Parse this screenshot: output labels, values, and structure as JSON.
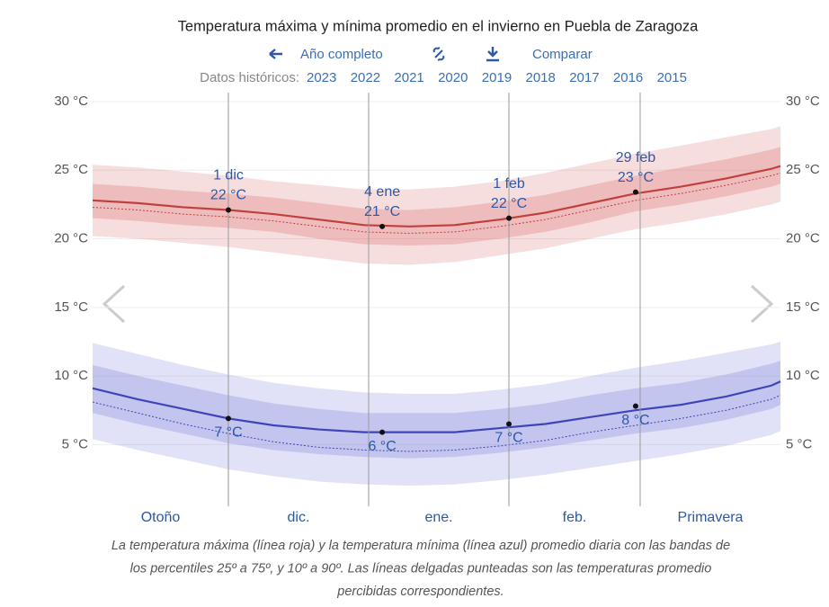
{
  "chart_data": {
    "type": "band_line",
    "title": "Temperatura máxima y mínima promedio en el invierno en Puebla de Zaragoza",
    "links": [
      "Año completo",
      "Comparar"
    ],
    "history_label": "Datos históricos:",
    "years": [
      "2023",
      "2022",
      "2021",
      "2020",
      "2019",
      "2018",
      "2017",
      "2016",
      "2015"
    ],
    "caption": [
      "La temperatura máxima (línea roja) y la temperatura mínima (línea azul) promedio diaria con las bandas de",
      "los percentiles 25º a 75º, y 10º a 90º. Las líneas delgadas punteadas son las temperaturas promedio",
      "percibidas correspondientes."
    ],
    "months": [
      "Otoño",
      "dic.",
      "ene.",
      "feb.",
      "Primavera"
    ],
    "x": [
      0,
      10,
      20,
      30,
      40,
      50,
      60,
      70,
      80,
      90,
      100,
      110,
      120,
      130,
      140,
      150,
      152
    ],
    "xlim": [
      0,
      152
    ],
    "xticks": [
      30,
      61,
      92,
      121
    ],
    "ylim": [
      0.5,
      30
    ],
    "yticks": [
      {
        "value": 5,
        "label": "5 °C"
      },
      {
        "value": 10,
        "label": "10 °C"
      },
      {
        "value": 15,
        "label": "15 °C"
      },
      {
        "value": 20,
        "label": "20 °C"
      },
      {
        "value": 25,
        "label": "25 °C"
      },
      {
        "value": 30,
        "label": "30 °C"
      }
    ],
    "grid": true,
    "series": [
      {
        "color": "#c0403c",
        "band_color": "#d9585a",
        "values": [
          22.8,
          22.6,
          22.3,
          22.1,
          21.8,
          21.4,
          21.0,
          20.9,
          21.0,
          21.4,
          21.9,
          22.6,
          23.3,
          23.8,
          24.4,
          25.1,
          25.3
        ],
        "perceived": [
          22.3,
          22.1,
          21.8,
          21.6,
          21.3,
          20.9,
          20.5,
          20.4,
          20.5,
          20.9,
          21.4,
          22.1,
          22.8,
          23.3,
          23.9,
          24.6,
          24.8
        ],
        "p10": [
          20.2,
          20.0,
          19.7,
          19.4,
          19.0,
          18.6,
          18.2,
          18.1,
          18.3,
          18.8,
          19.3,
          20.0,
          20.7,
          21.2,
          21.8,
          22.5,
          22.7
        ],
        "p25": [
          21.5,
          21.3,
          21.0,
          20.8,
          20.5,
          20.0,
          19.6,
          19.5,
          19.6,
          20.0,
          20.5,
          21.2,
          22.0,
          22.5,
          23.1,
          23.8,
          24.0
        ],
        "p75": [
          24.0,
          23.8,
          23.5,
          23.3,
          23.0,
          22.6,
          22.2,
          22.1,
          22.3,
          22.7,
          23.2,
          23.9,
          24.6,
          25.2,
          25.8,
          26.5,
          26.7
        ],
        "p90": [
          25.4,
          25.2,
          24.9,
          24.6,
          24.2,
          23.9,
          23.6,
          23.6,
          23.8,
          24.2,
          24.8,
          25.5,
          26.2,
          26.8,
          27.4,
          28.0,
          28.2
        ]
      },
      {
        "color": "#3f45b8",
        "band_color": "#6a6fd6",
        "values": [
          9.1,
          8.3,
          7.6,
          6.9,
          6.4,
          6.1,
          5.9,
          5.9,
          5.9,
          6.2,
          6.5,
          7.0,
          7.5,
          7.9,
          8.5,
          9.3,
          9.6
        ],
        "perceived": [
          8.1,
          7.3,
          6.5,
          5.8,
          5.2,
          4.8,
          4.6,
          4.5,
          4.6,
          4.9,
          5.3,
          5.9,
          6.4,
          6.9,
          7.5,
          8.3,
          8.6
        ],
        "p10": [
          5.4,
          4.6,
          3.9,
          3.2,
          2.7,
          2.3,
          2.1,
          2.0,
          2.1,
          2.4,
          2.8,
          3.3,
          3.8,
          4.3,
          4.9,
          5.7,
          6.0
        ],
        "p25": [
          7.3,
          6.5,
          5.8,
          5.1,
          4.6,
          4.3,
          4.1,
          4.0,
          4.1,
          4.4,
          4.8,
          5.3,
          5.8,
          6.2,
          6.8,
          7.6,
          7.9
        ],
        "p75": [
          10.8,
          10.0,
          9.3,
          8.6,
          8.0,
          7.6,
          7.3,
          7.3,
          7.3,
          7.6,
          8.0,
          8.6,
          9.1,
          9.5,
          10.1,
          10.9,
          11.1
        ],
        "p90": [
          12.4,
          11.6,
          10.8,
          10.1,
          9.5,
          9.1,
          8.8,
          8.7,
          8.7,
          9.0,
          9.4,
          10.0,
          10.6,
          11.1,
          11.7,
          12.3,
          12.5
        ]
      }
    ],
    "annotations": [
      {
        "date": "1 dic",
        "x": 30,
        "max": 22.1,
        "max_label": "22 °C",
        "min": 6.9,
        "min_label": "7 °C"
      },
      {
        "date": "4 ene",
        "x": 64,
        "max": 20.9,
        "max_label": "21 °C",
        "min": 5.9,
        "min_label": "6 °C"
      },
      {
        "date": "1 feb",
        "x": 92,
        "max": 21.5,
        "max_label": "22 °C",
        "min": 6.5,
        "min_label": "7 °C"
      },
      {
        "date": "29 feb",
        "x": 120,
        "max": 23.4,
        "max_label": "23 °C",
        "min": 7.8,
        "min_label": "8 °C"
      }
    ]
  }
}
